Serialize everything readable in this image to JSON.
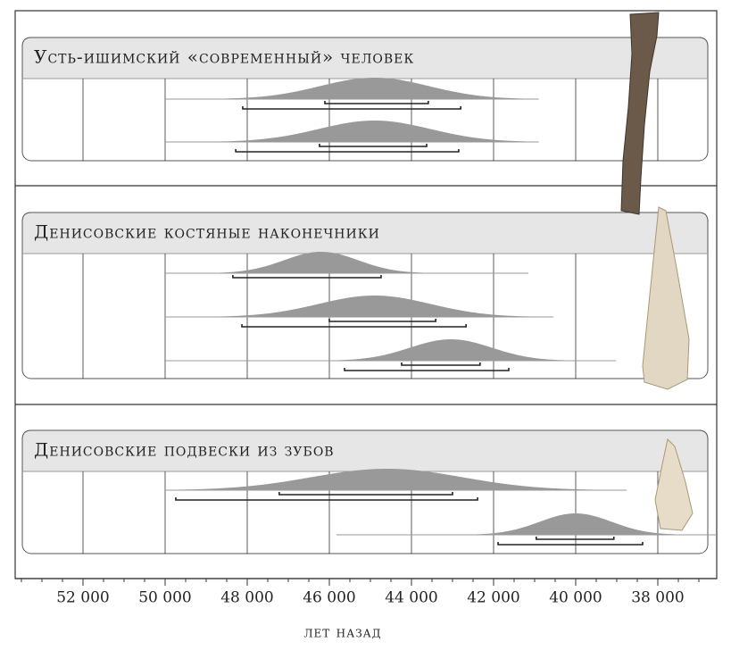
{
  "chart_data": {
    "type": "range",
    "xlabel": "лет назад",
    "xlim": [
      53652,
      36565
    ],
    "xticks": [
      {
        "value": 52000,
        "label": "52 000"
      },
      {
        "value": 50000,
        "label": "50 000"
      },
      {
        "value": 48000,
        "label": "48 000"
      },
      {
        "value": 46000,
        "label": "46 000"
      },
      {
        "value": 44000,
        "label": "44 000"
      },
      {
        "value": 42000,
        "label": "42 000"
      },
      {
        "value": 40000,
        "label": "40 000"
      },
      {
        "value": 38000,
        "label": "38 000"
      }
    ],
    "minor_xticks": [
      53500,
      53000,
      52500,
      51500,
      51000,
      50500,
      49500,
      49000,
      48500,
      47500,
      47000,
      46500,
      45500,
      45000,
      44500,
      43500,
      43000,
      42500,
      41500,
      41000,
      40500,
      39500,
      39000,
      38500,
      37500,
      37000
    ],
    "panels": [
      {
        "title": "Усть-ишимский «современный» человек",
        "samples": [
          {
            "mode": 44900,
            "extent": [
              50000,
              40900
            ],
            "ranges": [
              [
                46110,
                43590
              ],
              [
                48110,
                42800
              ]
            ]
          },
          {
            "mode": 44900,
            "extent": [
              50000,
              40900
            ],
            "ranges": [
              [
                46240,
                43630
              ],
              [
                48280,
                42850
              ]
            ]
          }
        ]
      },
      {
        "title": "Денисовские костяные наконечники",
        "samples": [
          {
            "mode": 46200,
            "extent": [
              50000,
              41150
            ],
            "ranges": [
              [
                48350,
                44740
              ]
            ]
          },
          {
            "mode": 44900,
            "extent": [
              50000,
              40540
            ],
            "ranges": [
              [
                46000,
                43410
              ],
              [
                48130,
                42670
              ]
            ]
          },
          {
            "mode": 43040,
            "extent": [
              50000,
              39020
            ],
            "ranges": [
              [
                44240,
                42330
              ],
              [
                45630,
                41630
              ]
            ]
          }
        ]
      },
      {
        "title": "Денисовские подвески из зубов",
        "samples": [
          {
            "mode": 44600,
            "extent": [
              50000,
              38760
            ],
            "ranges": [
              [
                47220,
                43000
              ],
              [
                49740,
                42390
              ]
            ]
          },
          {
            "mode": 40000,
            "extent": [
              45830,
              36565
            ],
            "ranges": [
              [
                40960,
                39070
              ],
              [
                41890,
                38370
              ]
            ]
          }
        ]
      }
    ]
  }
}
